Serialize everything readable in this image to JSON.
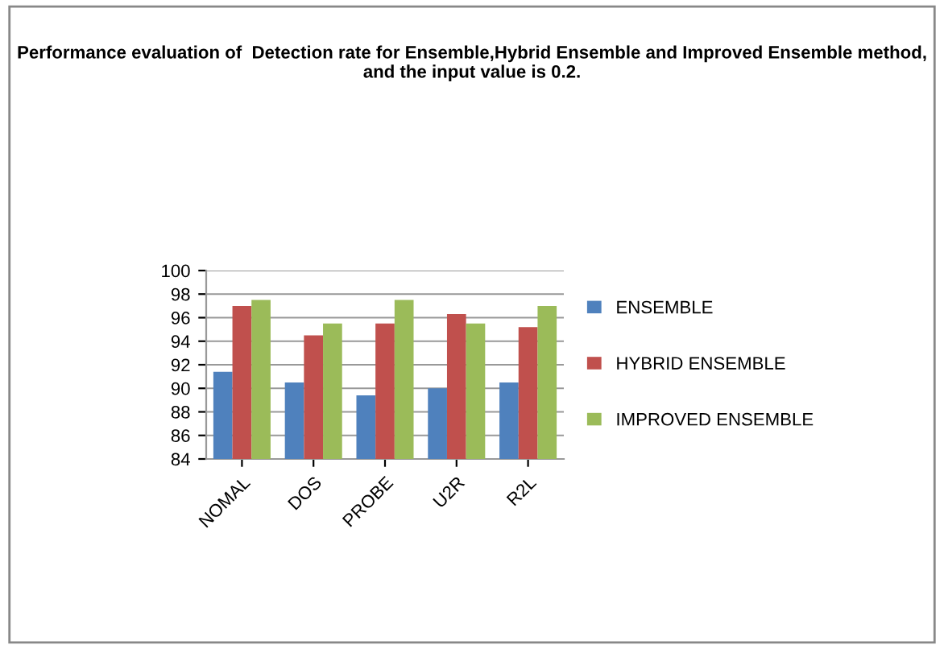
{
  "chart_data": {
    "type": "bar",
    "title": "Performance evaluation of  Detection rate for Ensemble,Hybrid Ensemble and Improved Ensemble method, and the input value is 0.2.",
    "categories": [
      "NOMAL",
      "DOS",
      "PROBE",
      "U2R",
      "R2L"
    ],
    "series": [
      {
        "name": "ENSEMBLE",
        "color": "#4f81bd",
        "values": [
          91.4,
          90.5,
          89.4,
          90,
          90.5
        ]
      },
      {
        "name": "HYBRID ENSEMBLE",
        "color": "#c0504d",
        "values": [
          97,
          94.5,
          95.5,
          96.3,
          95.2
        ]
      },
      {
        "name": "IMPROVED ENSEMBLE",
        "color": "#9bbb59",
        "values": [
          97.5,
          95.5,
          97.5,
          95.5,
          97
        ]
      }
    ],
    "ylim": [
      84,
      100
    ],
    "yticks": [
      84,
      86,
      88,
      90,
      92,
      94,
      96,
      98,
      100
    ],
    "grid": "y",
    "legend": "right"
  }
}
